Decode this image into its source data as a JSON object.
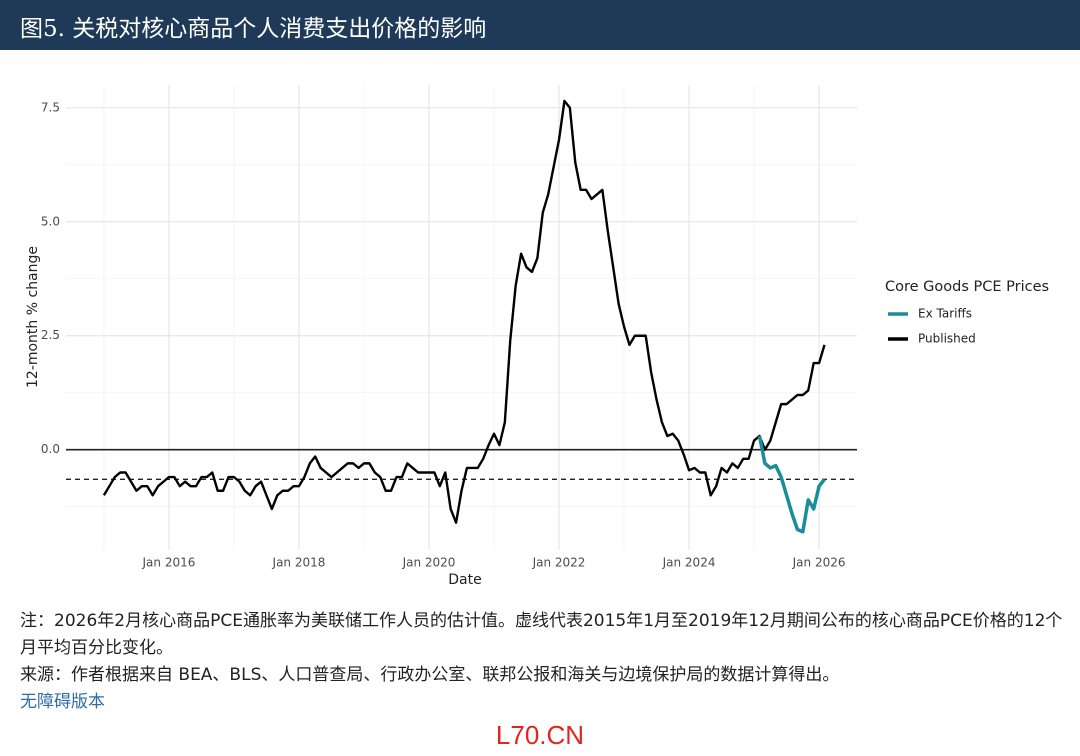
{
  "header": {
    "title": "图5. 关税对核心商品个人消费支出价格的影响"
  },
  "chart_data": {
    "type": "line",
    "x_label": "Date",
    "y_label": "12-month % change",
    "xlim": [
      "2014-06",
      "2026-08"
    ],
    "xticks": [
      {
        "value": "2016-01",
        "label": "Jan 2016"
      },
      {
        "value": "2018-01",
        "label": "Jan 2018"
      },
      {
        "value": "2020-01",
        "label": "Jan 2020"
      },
      {
        "value": "2022-01",
        "label": "Jan 2022"
      },
      {
        "value": "2024-01",
        "label": "Jan 2024"
      },
      {
        "value": "2026-01",
        "label": "Jan 2026"
      }
    ],
    "ylim": [
      -2.2,
      8.0
    ],
    "yticks": [
      {
        "value": 0,
        "label": "0.0"
      },
      2.5,
      {
        "value": 5,
        "label": "5.0"
      },
      7.5
    ],
    "grid": true,
    "reference_lines": [
      {
        "value": 0,
        "style": "solid"
      },
      {
        "value": -0.65,
        "style": "dashed"
      }
    ],
    "legend_title": "Core Goods PCE Prices",
    "legend_position": "right",
    "series": [
      {
        "name": "Ex Tariffs",
        "color": "#1a8d9b",
        "x": [
          "2025-02",
          "2025-03",
          "2025-04",
          "2025-05",
          "2025-06",
          "2025-07",
          "2025-08",
          "2025-09",
          "2025-10",
          "2025-11",
          "2025-12",
          "2026-01",
          "2026-02"
        ],
        "values": [
          0.3,
          -0.3,
          -0.4,
          -0.35,
          -0.6,
          -1.0,
          -1.4,
          -1.75,
          -1.8,
          -1.1,
          -1.3,
          -0.8,
          -0.65
        ]
      },
      {
        "name": "Published",
        "color": "#000000",
        "x": [
          "2015-01",
          "2015-02",
          "2015-03",
          "2015-04",
          "2015-05",
          "2015-06",
          "2015-07",
          "2015-08",
          "2015-09",
          "2015-10",
          "2015-11",
          "2015-12",
          "2016-01",
          "2016-02",
          "2016-03",
          "2016-04",
          "2016-05",
          "2016-06",
          "2016-07",
          "2016-08",
          "2016-09",
          "2016-10",
          "2016-11",
          "2016-12",
          "2017-01",
          "2017-02",
          "2017-03",
          "2017-04",
          "2017-05",
          "2017-06",
          "2017-07",
          "2017-08",
          "2017-09",
          "2017-10",
          "2017-11",
          "2017-12",
          "2018-01",
          "2018-02",
          "2018-03",
          "2018-04",
          "2018-05",
          "2018-06",
          "2018-07",
          "2018-08",
          "2018-09",
          "2018-10",
          "2018-11",
          "2018-12",
          "2019-01",
          "2019-02",
          "2019-03",
          "2019-04",
          "2019-05",
          "2019-06",
          "2019-07",
          "2019-08",
          "2019-09",
          "2019-10",
          "2019-11",
          "2019-12",
          "2020-01",
          "2020-02",
          "2020-03",
          "2020-04",
          "2020-05",
          "2020-06",
          "2020-07",
          "2020-08",
          "2020-09",
          "2020-10",
          "2020-11",
          "2020-12",
          "2021-01",
          "2021-02",
          "2021-03",
          "2021-04",
          "2021-05",
          "2021-06",
          "2021-07",
          "2021-08",
          "2021-09",
          "2021-10",
          "2021-11",
          "2021-12",
          "2022-01",
          "2022-02",
          "2022-03",
          "2022-04",
          "2022-05",
          "2022-06",
          "2022-07",
          "2022-08",
          "2022-09",
          "2022-10",
          "2022-11",
          "2022-12",
          "2023-01",
          "2023-02",
          "2023-03",
          "2023-04",
          "2023-05",
          "2023-06",
          "2023-07",
          "2023-08",
          "2023-09",
          "2023-10",
          "2023-11",
          "2023-12",
          "2024-01",
          "2024-02",
          "2024-03",
          "2024-04",
          "2024-05",
          "2024-06",
          "2024-07",
          "2024-08",
          "2024-09",
          "2024-10",
          "2024-11",
          "2024-12",
          "2025-01",
          "2025-02",
          "2025-03",
          "2025-04",
          "2025-05",
          "2025-06",
          "2025-07",
          "2025-08",
          "2025-09",
          "2025-10",
          "2025-11",
          "2025-12",
          "2026-01",
          "2026-02"
        ],
        "values": [
          -1.0,
          -0.8,
          -0.6,
          -0.5,
          -0.5,
          -0.7,
          -0.9,
          -0.8,
          -0.8,
          -1.0,
          -0.8,
          -0.7,
          -0.6,
          -0.6,
          -0.8,
          -0.7,
          -0.8,
          -0.8,
          -0.6,
          -0.6,
          -0.5,
          -0.9,
          -0.9,
          -0.6,
          -0.6,
          -0.7,
          -0.9,
          -1.0,
          -0.8,
          -0.7,
          -1.0,
          -1.3,
          -1.0,
          -0.9,
          -0.9,
          -0.8,
          -0.8,
          -0.6,
          -0.3,
          -0.15,
          -0.4,
          -0.5,
          -0.6,
          -0.5,
          -0.4,
          -0.3,
          -0.3,
          -0.4,
          -0.3,
          -0.3,
          -0.5,
          -0.6,
          -0.9,
          -0.9,
          -0.6,
          -0.6,
          -0.3,
          -0.4,
          -0.5,
          -0.5,
          -0.5,
          -0.5,
          -0.8,
          -0.5,
          -1.3,
          -1.6,
          -0.9,
          -0.4,
          -0.4,
          -0.4,
          -0.2,
          0.1,
          0.35,
          0.1,
          0.6,
          2.4,
          3.6,
          4.3,
          4.0,
          3.9,
          4.2,
          5.2,
          5.6,
          6.2,
          6.8,
          7.65,
          7.5,
          6.3,
          5.7,
          5.7,
          5.5,
          5.6,
          5.7,
          4.8,
          4.0,
          3.2,
          2.7,
          2.3,
          2.5,
          2.5,
          2.5,
          1.7,
          1.1,
          0.6,
          0.3,
          0.35,
          0.2,
          -0.1,
          -0.45,
          -0.4,
          -0.5,
          -0.5,
          -1.0,
          -0.8,
          -0.4,
          -0.5,
          -0.3,
          -0.4,
          -0.2,
          -0.2,
          0.2,
          0.3,
          0.0,
          0.2,
          0.6,
          1.0,
          1.0,
          1.1,
          1.2,
          1.2,
          1.3,
          1.9,
          1.9,
          2.3
        ]
      }
    ]
  },
  "notes": {
    "note": "注：2026年2月核心商品PCE通胀率为美联储工作人员的估计值。虚线代表2015年1月至2019年12月期间公布的核心商品PCE价格的12个月平均百分比变化。",
    "source": "来源：作者根据来自 BEA、BLS、人口普查局、行政办公室、联邦公报和海关与边境保护局的数据计算得出。",
    "link": "无障碍版本"
  },
  "watermark": "L70.CN"
}
